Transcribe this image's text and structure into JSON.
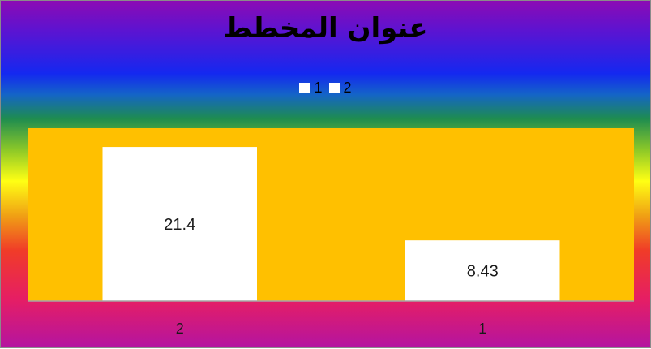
{
  "chart_data": {
    "type": "bar",
    "title": "عنوان المخطط",
    "categories": [
      "2",
      "1"
    ],
    "values": [
      21.4,
      8.43
    ],
    "data_labels": [
      "21.4",
      "8.43"
    ],
    "legend": [
      "1",
      "2"
    ],
    "legend_placement": "top",
    "ylim": [
      0,
      24
    ],
    "grid": false,
    "xlabel": "",
    "ylabel": ""
  },
  "colors": {
    "plot_area": "#ffc000",
    "bar": "#ffffff",
    "baseline": "#a6a6a6"
  }
}
